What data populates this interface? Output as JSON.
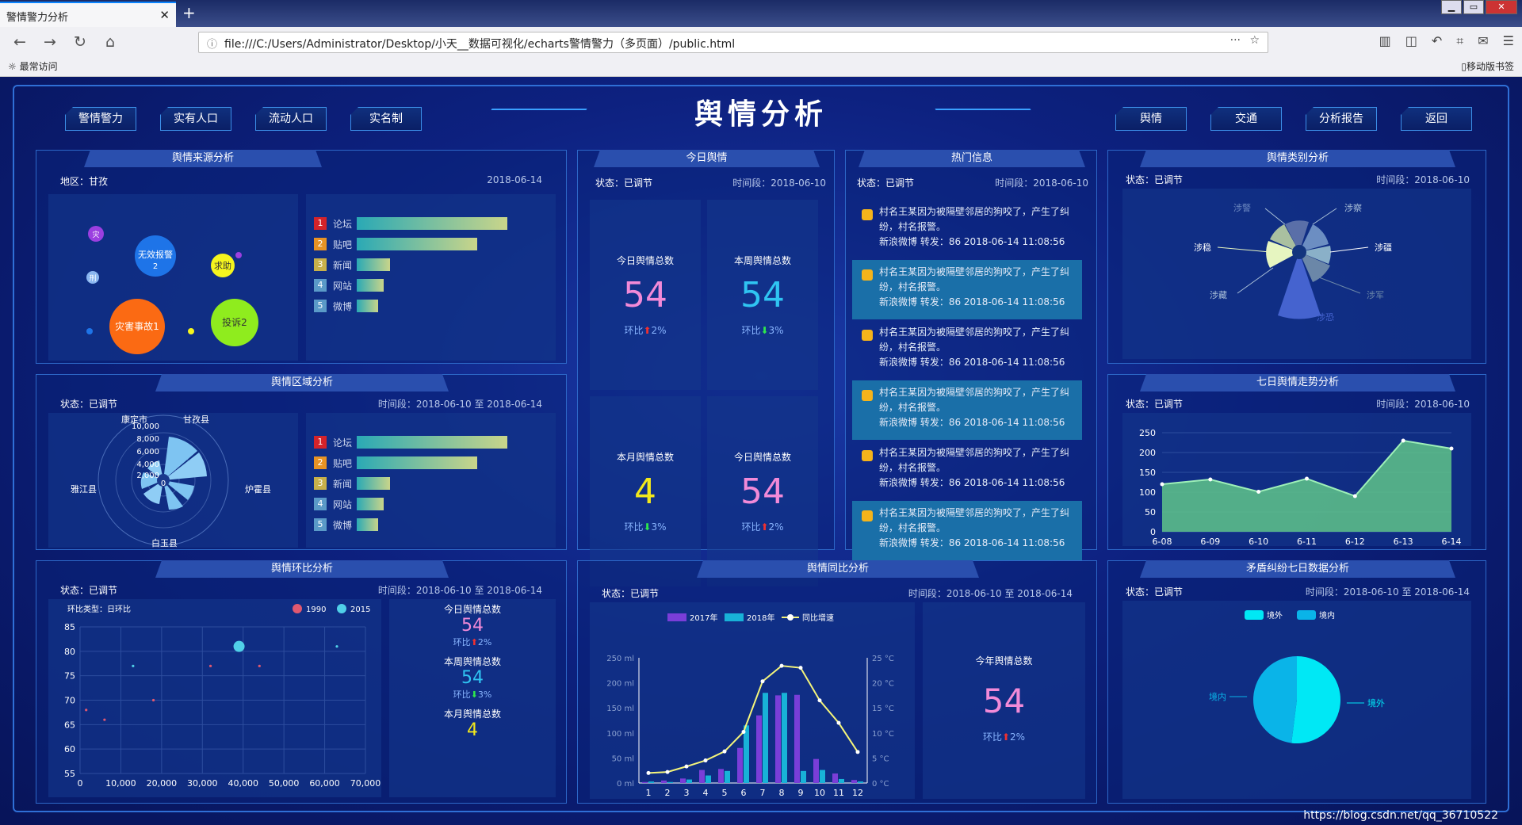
{
  "browser": {
    "tab_title": "警情警力分析",
    "tab_close": "✕",
    "new_tab": "+",
    "url": "file:///C:/Users/Administrator/Desktop/小天__数据可视化/echarts警情警力（多页面）/public.html",
    "bookmark_left": "☼ 最常访问",
    "bookmark_right": "▯移动版书签"
  },
  "dashboard": {
    "title": "舆情分析",
    "left_nav": [
      "警情警力",
      "实有人口",
      "流动人口",
      "实名制"
    ],
    "right_nav": [
      "舆情",
      "交通",
      "分析报告",
      "返回"
    ],
    "source": {
      "title": "舆情来源分析",
      "region": "地区：甘孜",
      "date": "2018-06-14",
      "bubbles": [
        "灾",
        "无效报警\n2",
        "求助",
        "刑",
        "灾害事故1",
        "投诉2"
      ],
      "bars": [
        {
          "n": "1",
          "label": "论坛",
          "v": 100
        },
        {
          "n": "2",
          "label": "贴吧",
          "v": 80
        },
        {
          "n": "3",
          "label": "新闻",
          "v": 22
        },
        {
          "n": "4",
          "label": "网站",
          "v": 18
        },
        {
          "n": "5",
          "label": "微博",
          "v": 14
        }
      ]
    },
    "region": {
      "title": "舆情区域分析",
      "status": "状态：已调节",
      "date": "时间段：2018-06-10 至 2018-06-14",
      "polar_labels": [
        "康定市",
        "甘孜县",
        "炉霍县",
        "白玉县",
        "雅江县"
      ],
      "ticks": [
        "10,000",
        "8,000",
        "6,000",
        "4,000",
        "2,000",
        "0"
      ],
      "bars": [
        {
          "n": "1",
          "label": "论坛",
          "v": 100
        },
        {
          "n": "2",
          "label": "贴吧",
          "v": 80
        },
        {
          "n": "3",
          "label": "新闻",
          "v": 22
        },
        {
          "n": "4",
          "label": "网站",
          "v": 18
        },
        {
          "n": "5",
          "label": "微博",
          "v": 14
        }
      ]
    },
    "today": {
      "title": "今日舆情",
      "status": "状态：已调节",
      "date": "时间段：2018-06-10",
      "cells": [
        {
          "label": "今日舆情总数",
          "value": "54",
          "color": "#f28ad8",
          "cmp": "环比",
          "arrow": "up",
          "pct": "2%"
        },
        {
          "label": "本周舆情总数",
          "value": "54",
          "color": "#2fc4f2",
          "cmp": "环比",
          "arrow": "down",
          "pct": "3%"
        },
        {
          "label": "本月舆情总数",
          "value": "4",
          "color": "#f2e81c",
          "cmp": "环比",
          "arrow": "down",
          "pct": "3%"
        },
        {
          "label": "今日舆情总数",
          "value": "54",
          "color": "#f28ad8",
          "cmp": "环比",
          "arrow": "up",
          "pct": "2%"
        }
      ]
    },
    "hot": {
      "title": "热门信息",
      "status": "状态：已调节",
      "date": "时间段：2018-06-10",
      "items": [
        {
          "text": "村名王某因为被隔壁邻居的狗咬了，产生了纠纷，村名报警。",
          "meta": "新浪微博 转发：86 2018-06-14 11:08:56"
        },
        {
          "text": "村名王某因为被隔壁邻居的狗咬了，产生了纠纷，村名报警。",
          "meta": "新浪微博 转发：86 2018-06-14 11:08:56"
        },
        {
          "text": "村名王某因为被隔壁邻居的狗咬了，产生了纠纷，村名报警。",
          "meta": "新浪微博 转发：86 2018-06-14 11:08:56"
        },
        {
          "text": "村名王某因为被隔壁邻居的狗咬了，产生了纠纷，村名报警。",
          "meta": "新浪微博 转发：86 2018-06-14 11:08:56"
        },
        {
          "text": "村名王某因为被隔壁邻居的狗咬了，产生了纠纷，村名报警。",
          "meta": "新浪微博 转发：86 2018-06-14 11:08:56"
        },
        {
          "text": "村名王某因为被隔壁邻居的狗咬了，产生了纠纷，村名报警。",
          "meta": "新浪微博 转发：86 2018-06-14 11:08:56"
        }
      ]
    },
    "category": {
      "title": "舆情类别分析",
      "status": "状态：已调节",
      "date": "时间段：2018-06-10",
      "labels": [
        "涉警",
        "涉察",
        "涉稳",
        "涉疆",
        "涉藏",
        "涉军",
        "涉恐"
      ]
    },
    "trend": {
      "title": "七日舆情走势分析",
      "status": "状态：已调节",
      "date": "时间段：2018-06-10"
    },
    "ring": {
      "title": "舆情环比分析",
      "status": "状态：已调节",
      "date": "时间段：2018-06-10 至 2018-06-14",
      "type_label": "环比类型：日环比",
      "legend": [
        "1990",
        "2015"
      ],
      "cells": [
        {
          "label": "今日舆情总数",
          "value": "54",
          "color": "#f28ad8",
          "cmp": "环比",
          "arrow": "up",
          "pct": "2%"
        },
        {
          "label": "本周舆情总数",
          "value": "54",
          "color": "#2fc4f2",
          "cmp": "环比",
          "arrow": "down",
          "pct": "3%"
        },
        {
          "label": "本月舆情总数",
          "value": "4",
          "color": "#f2e81c"
        }
      ]
    },
    "yoy": {
      "title": "舆情同比分析",
      "status": "状态：已调节",
      "date": "时间段：2018-06-10 至 2018-06-14",
      "legend": [
        "2017年",
        "2018年",
        "同比增速"
      ],
      "year_label": "今年舆情总数",
      "year_value": "54",
      "cmp": "环比",
      "pct": "2%"
    },
    "conflict": {
      "title": "矛盾纠纷七日数据分析",
      "status": "状态：已调节",
      "date": "时间段：2018-06-10 至 2018-06-14",
      "legend": [
        "境外",
        "境内"
      ]
    },
    "footer": "https://blog.csdn.net/qq_36710522"
  },
  "chart_data": [
    {
      "type": "line",
      "title": "七日舆情走势分析",
      "categories": [
        "6-08",
        "6-09",
        "6-10",
        "6-11",
        "6-12",
        "6-13",
        "6-14"
      ],
      "values": [
        120,
        132,
        101,
        134,
        90,
        230,
        210
      ],
      "ylim": [
        0,
        250
      ],
      "yticks": [
        "250",
        "200",
        "150",
        "100",
        "50",
        "0"
      ]
    },
    {
      "type": "scatter",
      "title": "舆情环比分析",
      "series": [
        {
          "name": "1990",
          "color": "#e05870",
          "points": [
            [
              1500,
              68
            ],
            [
              6000,
              66
            ],
            [
              18000,
              70
            ],
            [
              32000,
              77
            ],
            [
              44000,
              77
            ]
          ]
        },
        {
          "name": "2015",
          "color": "#50d0e8",
          "points": [
            [
              13000,
              77
            ],
            [
              39000,
              81
            ],
            [
              40000,
              81
            ],
            [
              63000,
              81
            ]
          ]
        }
      ],
      "xlim": [
        0,
        70000
      ],
      "ylim": [
        55,
        85
      ],
      "xticks": [
        "0",
        "10,000",
        "20,000",
        "30,000",
        "40,000",
        "50,000",
        "60,000",
        "70,000"
      ],
      "yticks": [
        "85",
        "80",
        "75",
        "70",
        "65",
        "60",
        "55"
      ]
    },
    {
      "type": "bar",
      "title": "舆情同比分析",
      "categories": [
        "1",
        "2",
        "3",
        "4",
        "5",
        "6",
        "7",
        "8",
        "9",
        "10",
        "11",
        "12"
      ],
      "series": [
        {
          "name": "2017年",
          "values": [
            2,
            5,
            9,
            26,
            28,
            70,
            135,
            175,
            176,
            48,
            19,
            6
          ]
        },
        {
          "name": "2018年",
          "values": [
            3,
            2,
            7,
            15,
            24,
            115,
            180,
            180,
            24,
            26,
            8,
            3
          ]
        }
      ],
      "line": {
        "name": "同比增速",
        "values": [
          2,
          2.2,
          3.3,
          4.5,
          6.3,
          10.2,
          20.3,
          23.4,
          23.0,
          16.5,
          12.0,
          6.2
        ]
      },
      "yleft": [
        "250 ml",
        "200 ml",
        "150 ml",
        "100 ml",
        "50 ml",
        "0 ml"
      ],
      "yright": [
        "25 °C",
        "20 °C",
        "15 °C",
        "10 °C",
        "5 °C",
        "0 °C"
      ]
    },
    {
      "type": "pie",
      "title": "矛盾纠纷七日数据分析",
      "values": [
        {
          "name": "境外",
          "value": 52
        },
        {
          "name": "境内",
          "value": 48
        }
      ]
    }
  ]
}
